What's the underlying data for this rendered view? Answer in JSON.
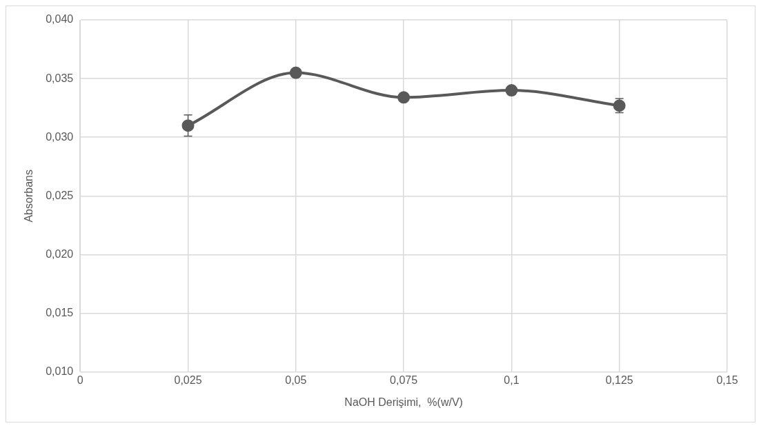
{
  "chart_data": {
    "type": "line",
    "xlabel": "NaOH Derişimi,  %(w/V)",
    "ylabel": "Absorbans",
    "x": [
      0.025,
      0.05,
      0.075,
      0.1,
      0.125
    ],
    "series": [
      {
        "color": "#595959",
        "values": [
          0.031,
          0.0355,
          0.0334,
          0.034,
          0.0327
        ],
        "errors": [
          0.0009,
          0.0002,
          0.0002,
          0.0002,
          0.0006
        ]
      }
    ],
    "xlim": [
      0,
      0.15
    ],
    "xticks": [
      0,
      {
        "value": 0.025,
        "label": "0,025"
      },
      {
        "value": 0.05,
        "label": "0,05"
      },
      {
        "value": 0.075,
        "label": "0,075"
      },
      {
        "value": 0.1,
        "label": "0,1"
      },
      {
        "value": 0.125,
        "label": "0,125"
      },
      {
        "value": 0.15,
        "label": "0,15"
      }
    ],
    "ylim": [
      0.01,
      0.04
    ],
    "yticks": [
      {
        "value": 0.01,
        "label": "0,010"
      },
      {
        "value": 0.015,
        "label": "0,015"
      },
      {
        "value": 0.02,
        "label": "0,020"
      },
      {
        "value": 0.025,
        "label": "0,025"
      },
      {
        "value": 0.03,
        "label": "0,030"
      },
      {
        "value": 0.035,
        "label": "0,035"
      },
      {
        "value": 0.04,
        "label": "0,040"
      }
    ],
    "grid": true,
    "marker": "circle",
    "line_style": "solid",
    "legend": false
  }
}
